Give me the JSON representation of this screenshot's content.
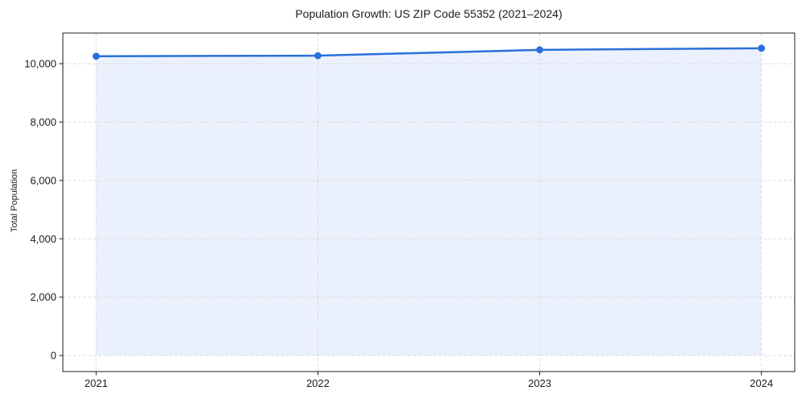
{
  "figure": {
    "title": "Population Growth: US ZIP Code 55352 (2021–2024)",
    "y_axis_label": "Total Population"
  },
  "chart_data": {
    "type": "area",
    "title": "Population Growth: US ZIP Code 55352 (2021–2024)",
    "xlabel": "",
    "ylabel": "Total Population",
    "x": [
      2021,
      2022,
      2023,
      2024
    ],
    "series": [
      {
        "name": "Total Population",
        "values": [
          10255,
          10275,
          10475,
          10530
        ]
      }
    ],
    "xtick_labels": [
      "2021",
      "2022",
      "2023",
      "2024"
    ],
    "yticks": [
      0,
      2000,
      4000,
      6000,
      8000,
      10000
    ],
    "ytick_labels": [
      "0",
      "2,000",
      "4,000",
      "6,000",
      "8,000",
      "10,000"
    ],
    "ylim": [
      -550,
      11050
    ],
    "x_margin_fraction": 0.05,
    "area_baseline": 0,
    "grid": true,
    "legend": "none",
    "colors": {
      "line": "#2a70db",
      "marker": "#2a70db",
      "fill": "#e9f0fc",
      "grid": "#d9d9d9",
      "spine": "#1c1c1c",
      "text": "#1c1c1c"
    }
  }
}
